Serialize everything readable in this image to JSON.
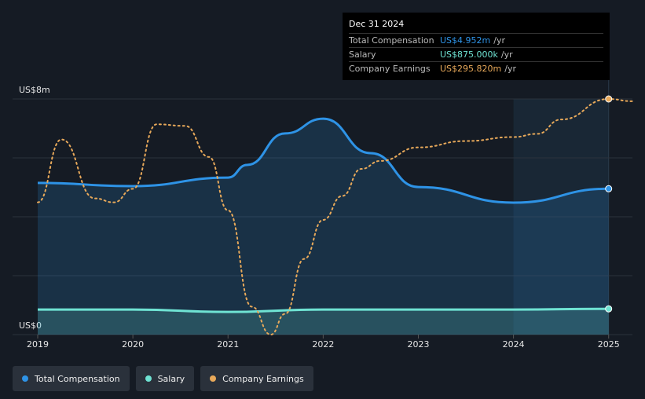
{
  "chart_data": {
    "type": "line",
    "xlim": [
      2019,
      2025.25
    ],
    "xticks": [
      2019,
      2020,
      2021,
      2022,
      2023,
      2024,
      2025
    ],
    "ylim": [
      0,
      8
    ],
    "yticks": [
      {
        "value": 0,
        "label": "US$0"
      },
      {
        "value": 8,
        "label": "US$8m"
      }
    ],
    "ygrid": [
      0,
      2,
      4,
      6,
      8
    ],
    "y2lim": [
      0,
      295.82
    ],
    "highlight": [
      2024,
      2025
    ],
    "series": [
      {
        "name": "Total Compensation",
        "color": "#2e93e6",
        "style": "solid",
        "area": true,
        "x": [
          2019,
          2020,
          2021,
          2021.2,
          2021.6,
          2022,
          2022.5,
          2023,
          2024,
          2025
        ],
        "values": [
          5.15,
          5.04,
          5.33,
          5.76,
          6.83,
          7.33,
          6.16,
          5.01,
          4.48,
          4.952
        ]
      },
      {
        "name": "Salary",
        "color": "#6fe3d3",
        "style": "solid",
        "area": true,
        "x": [
          2019,
          2020,
          2021,
          2022,
          2023,
          2024,
          2025
        ],
        "values": [
          0.85,
          0.85,
          0.77,
          0.85,
          0.85,
          0.85,
          0.875
        ]
      },
      {
        "name": "Company Earnings",
        "color": "#e8a95a",
        "style": "dotted",
        "area": false,
        "axis": "y2",
        "x": [
          2019,
          2019.25,
          2019.6,
          2019.8,
          2020,
          2020.25,
          2020.55,
          2020.8,
          2021,
          2021.25,
          2021.45,
          2021.6,
          2021.8,
          2022,
          2022.2,
          2022.4,
          2022.6,
          2023,
          2023.5,
          2024,
          2024.25,
          2024.5,
          2025,
          2025.25
        ],
        "values": [
          166,
          245,
          171,
          166,
          183,
          264,
          262,
          223,
          156,
          35,
          0,
          26,
          95,
          144,
          174,
          208,
          218,
          235,
          243,
          248,
          252,
          270,
          295.82,
          293
        ]
      }
    ]
  },
  "tooltip": {
    "title": "Dec 31 2024",
    "rows": [
      {
        "label": "Total Compensation",
        "value": "US$4.952m",
        "unit": "/yr",
        "color": "#2e93e6"
      },
      {
        "label": "Salary",
        "value": "US$875.000k",
        "unit": "/yr",
        "color": "#6fe3d3"
      },
      {
        "label": "Company Earnings",
        "value": "US$295.820m",
        "unit": "/yr",
        "color": "#e8a95a"
      }
    ]
  }
}
